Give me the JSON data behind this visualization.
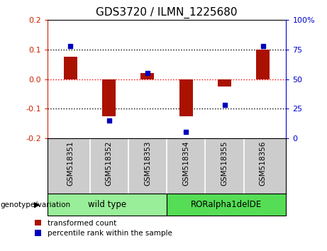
{
  "title": "GDS3720 / ILMN_1225680",
  "categories": [
    "GSM518351",
    "GSM518352",
    "GSM518353",
    "GSM518354",
    "GSM518355",
    "GSM518356"
  ],
  "red_bars": [
    0.075,
    -0.125,
    0.02,
    -0.125,
    -0.025,
    0.1
  ],
  "blue_dots_pct": [
    78,
    15,
    55,
    5,
    28,
    78
  ],
  "ylim_left": [
    -0.2,
    0.2
  ],
  "ylim_right": [
    0,
    100
  ],
  "yticks_left": [
    -0.2,
    -0.1,
    0.0,
    0.1,
    0.2
  ],
  "yticks_right": [
    0,
    25,
    50,
    75,
    100
  ],
  "left_axis_color": "#cc2200",
  "right_axis_color": "#0000cc",
  "bar_color": "#aa1100",
  "dot_color": "#0000bb",
  "group1_label": "wild type",
  "group2_label": "RORalpha1delDE",
  "group1_color": "#99ee99",
  "group2_color": "#55dd55",
  "cat_bg_color": "#cccccc",
  "genotype_label": "genotype/variation",
  "legend_red": "transformed count",
  "legend_blue": "percentile rank within the sample",
  "bar_width": 0.35
}
